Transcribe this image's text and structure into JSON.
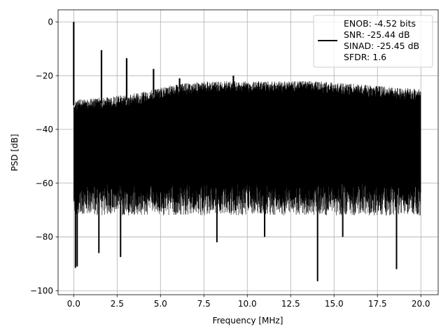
{
  "chart_data": {
    "type": "line",
    "xlabel": "Frequency [MHz]",
    "ylabel": "PSD [dB]",
    "xlim": [
      -0.9,
      21.0
    ],
    "ylim": [
      -101.5,
      4.5
    ],
    "xticks": [
      0.0,
      2.5,
      5.0,
      7.5,
      10.0,
      12.5,
      15.0,
      17.5,
      20.0
    ],
    "xtick_labels": [
      "0.0",
      "2.5",
      "5.0",
      "7.5",
      "10.0",
      "12.5",
      "15.0",
      "17.5",
      "20.0"
    ],
    "yticks": [
      0,
      -20,
      -40,
      -60,
      -80,
      -100
    ],
    "ytick_labels": [
      "0",
      "−20",
      "−40",
      "−60",
      "−80",
      "−100"
    ],
    "grid": true,
    "legend_position": "top-right",
    "series": [
      {
        "name": "ENOB: -4.52 bits\nSNR: -25.44 dB\nSINAD: -25.45 dB\nSFDR: 1.6",
        "legend_lines": [
          "ENOB: -4.52 bits",
          "SNR: -25.44 dB",
          "SINAD: -25.45 dB",
          "SFDR: 1.6"
        ],
        "color": "#000000",
        "x_range": [
          0.0,
          20.0
        ],
        "noise_ceiling": [
          [
            0.0,
            -29
          ],
          [
            2.0,
            -28
          ],
          [
            4.0,
            -26
          ],
          [
            6.0,
            -23
          ],
          [
            8.0,
            -22
          ],
          [
            10.0,
            -22
          ],
          [
            12.0,
            -22
          ],
          [
            14.0,
            -22
          ],
          [
            16.0,
            -23
          ],
          [
            18.0,
            -24
          ],
          [
            20.0,
            -25
          ]
        ],
        "noise_floor": -60,
        "noise_floor_deep": -72,
        "peaks": [
          {
            "x": 0.0,
            "y": 0
          },
          {
            "x": 1.6,
            "y": -10.5
          },
          {
            "x": 3.05,
            "y": -13.5
          },
          {
            "x": 4.6,
            "y": -17.5
          },
          {
            "x": 6.1,
            "y": -21
          },
          {
            "x": 9.2,
            "y": -20
          }
        ],
        "dips": [
          {
            "x": 0.1,
            "y": -91.5
          },
          {
            "x": 0.2,
            "y": -91
          },
          {
            "x": 1.45,
            "y": -86
          },
          {
            "x": 2.7,
            "y": -87.5
          },
          {
            "x": 8.25,
            "y": -82
          },
          {
            "x": 11.0,
            "y": -80
          },
          {
            "x": 14.05,
            "y": -96.5
          },
          {
            "x": 15.5,
            "y": -80
          },
          {
            "x": 18.6,
            "y": -92
          }
        ]
      }
    ]
  }
}
